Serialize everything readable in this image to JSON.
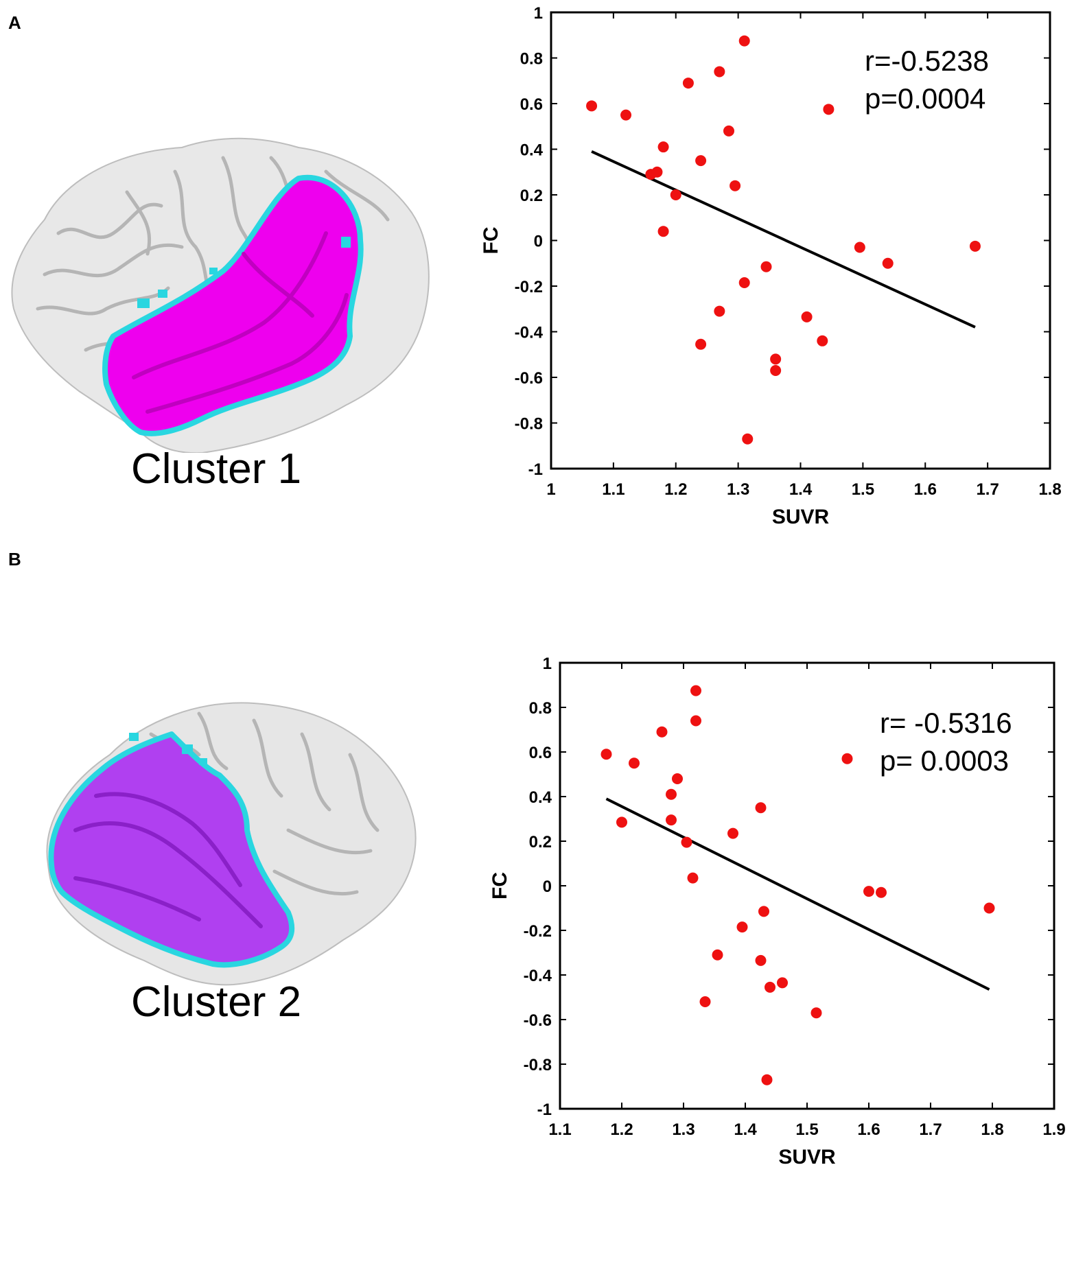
{
  "panels": [
    {
      "letter": "A",
      "cluster_label": "Cluster 1",
      "stats": {
        "r": "r=-0.5238",
        "p": "p=0.0004"
      }
    },
    {
      "letter": "B",
      "cluster_label": "Cluster 2",
      "stats": {
        "r": "r= -0.5316",
        "p": "p= 0.0003"
      }
    }
  ],
  "colors": {
    "point": "#ee1111",
    "line": "#000000",
    "brain": "#e6e6e6",
    "cluster1": "#ee00ee",
    "cluster2": "#b040f0",
    "edge": "#29d6e0"
  },
  "chart_data": [
    {
      "type": "scatter",
      "xlabel": "SUVR",
      "ylabel": "FC",
      "xlim": [
        1,
        1.8
      ],
      "ylim": [
        -1,
        1
      ],
      "xticks": [
        "1",
        "1.1",
        "1.2",
        "1.3",
        "1.4",
        "1.5",
        "1.6",
        "1.7",
        "1.8"
      ],
      "yticks": [
        "1",
        "0.8",
        "0.6",
        "0.4",
        "0.2",
        "0",
        "-0.2",
        "-0.4",
        "-0.6",
        "-0.8",
        "-1"
      ],
      "points": [
        [
          1.065,
          0.59
        ],
        [
          1.12,
          0.55
        ],
        [
          1.16,
          0.29
        ],
        [
          1.17,
          0.3
        ],
        [
          1.18,
          0.41
        ],
        [
          1.18,
          0.04
        ],
        [
          1.2,
          0.2
        ],
        [
          1.22,
          0.69
        ],
        [
          1.24,
          0.35
        ],
        [
          1.24,
          -0.455
        ],
        [
          1.27,
          0.74
        ],
        [
          1.27,
          -0.31
        ],
        [
          1.285,
          0.48
        ],
        [
          1.295,
          0.24
        ],
        [
          1.31,
          0.875
        ],
        [
          1.31,
          -0.185
        ],
        [
          1.315,
          -0.87
        ],
        [
          1.345,
          -0.115
        ],
        [
          1.36,
          -0.52
        ],
        [
          1.36,
          -0.57
        ],
        [
          1.41,
          -0.335
        ],
        [
          1.435,
          -0.44
        ],
        [
          1.445,
          0.575
        ],
        [
          1.495,
          -0.03
        ],
        [
          1.54,
          -0.1
        ],
        [
          1.68,
          -0.025
        ]
      ],
      "fit_line": {
        "x": [
          1.065,
          1.68
        ],
        "y": [
          0.39,
          -0.38
        ]
      }
    },
    {
      "type": "scatter",
      "xlabel": "SUVR",
      "ylabel": "FC",
      "xlim": [
        1.1,
        1.9
      ],
      "ylim": [
        -1,
        1
      ],
      "xticks": [
        "1.1",
        "1.2",
        "1.3",
        "1.4",
        "1.5",
        "1.6",
        "1.7",
        "1.8",
        "1.9"
      ],
      "yticks": [
        "1",
        "0.8",
        "0.6",
        "0.4",
        "0.2",
        "0",
        "-0.2",
        "-0.4",
        "-0.6",
        "-0.8",
        "-1"
      ],
      "points": [
        [
          1.175,
          0.59
        ],
        [
          1.2,
          0.285
        ],
        [
          1.22,
          0.55
        ],
        [
          1.265,
          0.69
        ],
        [
          1.28,
          0.41
        ],
        [
          1.28,
          0.295
        ],
        [
          1.29,
          0.48
        ],
        [
          1.305,
          0.195
        ],
        [
          1.315,
          0.035
        ],
        [
          1.32,
          0.74
        ],
        [
          1.32,
          0.875
        ],
        [
          1.335,
          -0.52
        ],
        [
          1.355,
          -0.31
        ],
        [
          1.38,
          0.235
        ],
        [
          1.395,
          -0.185
        ],
        [
          1.425,
          0.35
        ],
        [
          1.425,
          -0.335
        ],
        [
          1.43,
          -0.115
        ],
        [
          1.435,
          -0.87
        ],
        [
          1.44,
          -0.455
        ],
        [
          1.46,
          -0.435
        ],
        [
          1.515,
          -0.57
        ],
        [
          1.565,
          0.57
        ],
        [
          1.6,
          -0.025
        ],
        [
          1.62,
          -0.03
        ],
        [
          1.795,
          -0.1
        ]
      ],
      "fit_line": {
        "x": [
          1.175,
          1.795
        ],
        "y": [
          0.39,
          -0.465
        ]
      }
    }
  ]
}
